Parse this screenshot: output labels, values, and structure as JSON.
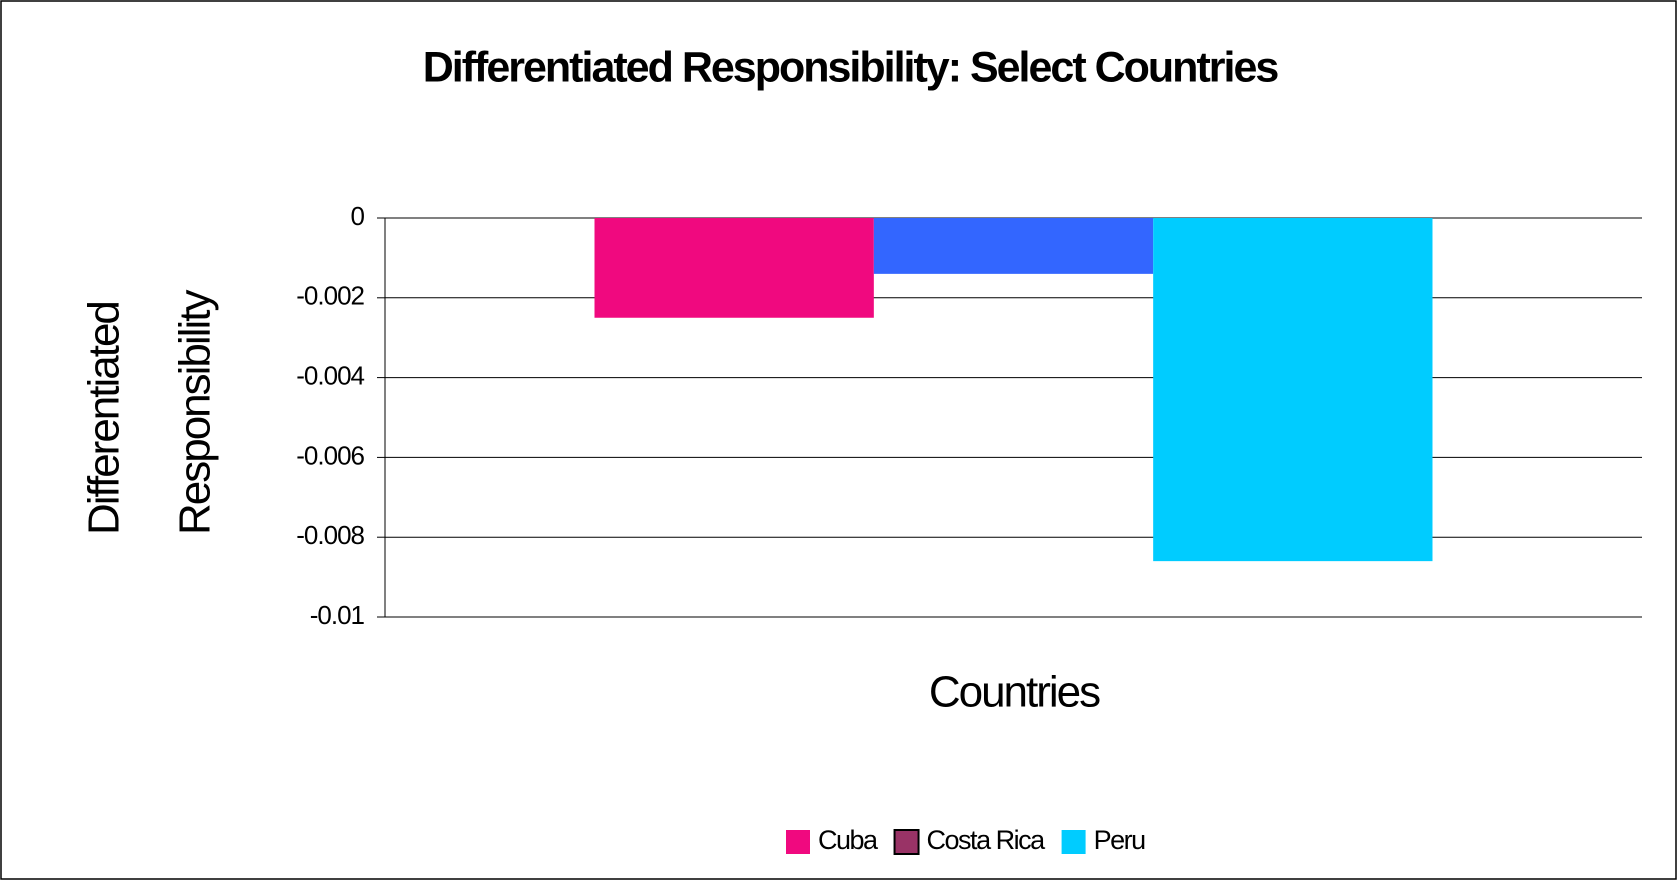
{
  "chart_data": {
    "type": "bar",
    "title": "Differentiated Responsibility: Select Countries",
    "x_label": "Countries",
    "y_label": [
      "Differentiated",
      "Responsibility"
    ],
    "categories": [
      null
    ],
    "series": [
      {
        "name": "Cuba",
        "color": "#f0097f",
        "values": [
          -0.0025
        ]
      },
      {
        "name": "Costa Rica",
        "color": "#3366ff",
        "legend_color": "#993366",
        "values": [
          -0.0014
        ]
      },
      {
        "name": "Peru",
        "color": "#00ccff",
        "values": [
          -0.0086
        ]
      }
    ],
    "ylim": [
      -0.01,
      0
    ],
    "yticks": [
      0,
      -0.002,
      -0.004,
      -0.006,
      -0.008,
      -0.01
    ],
    "grid": true,
    "legend": "bottom"
  }
}
